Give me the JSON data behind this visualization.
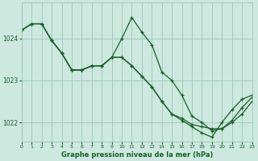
{
  "bg_color": "#cce8df",
  "grid_color": "#9dc8b8",
  "line_color": "#1a5e28",
  "xlabel": "Graphe pression niveau de la mer (hPa)",
  "xlim": [
    0,
    23
  ],
  "ylim": [
    1021.55,
    1024.85
  ],
  "yticks": [
    1022,
    1023,
    1024
  ],
  "xticks": [
    0,
    1,
    2,
    3,
    4,
    5,
    6,
    7,
    8,
    9,
    10,
    11,
    12,
    13,
    14,
    15,
    16,
    17,
    18,
    19,
    20,
    21,
    22,
    23
  ],
  "series1_x": [
    0,
    1,
    2,
    3,
    4,
    5,
    6,
    7,
    8,
    9,
    10,
    11,
    12,
    13,
    14,
    15,
    16,
    17,
    18,
    19,
    20,
    21,
    22,
    23
  ],
  "series1_y": [
    1024.2,
    1024.35,
    1024.35,
    1023.95,
    1023.65,
    1023.25,
    1023.25,
    1023.35,
    1023.35,
    1023.55,
    1024.0,
    1024.5,
    1024.15,
    1023.85,
    1023.2,
    1023.0,
    1022.65,
    1022.15,
    1022.0,
    1021.8,
    1021.85,
    1022.05,
    1022.35,
    1022.6
  ],
  "series2_x": [
    0,
    1,
    2,
    3,
    4,
    5,
    6,
    7,
    8,
    9,
    10,
    11,
    12,
    13,
    14,
    15,
    16,
    17,
    18,
    19,
    20,
    21,
    22,
    23
  ],
  "series2_y": [
    1024.2,
    1024.35,
    1024.35,
    1023.95,
    1023.65,
    1023.25,
    1023.25,
    1023.35,
    1023.35,
    1023.55,
    1023.55,
    1023.35,
    1023.1,
    1022.85,
    1022.5,
    1022.2,
    1022.1,
    1021.95,
    1021.9,
    1021.85,
    1021.85,
    1022.0,
    1022.2,
    1022.5
  ],
  "series3_x": [
    0,
    1,
    2,
    3,
    4,
    5,
    6,
    7,
    8,
    9,
    10,
    11,
    12,
    13,
    14,
    15,
    16,
    17,
    18,
    19,
    20,
    21,
    22,
    23
  ],
  "series3_y": [
    1024.2,
    1024.35,
    1024.35,
    1023.95,
    1023.65,
    1023.25,
    1023.25,
    1023.35,
    1023.35,
    1023.55,
    1023.55,
    1023.35,
    1023.1,
    1022.85,
    1022.5,
    1022.2,
    1022.05,
    1021.9,
    1021.75,
    1021.65,
    1022.0,
    1022.3,
    1022.55,
    1022.65
  ]
}
